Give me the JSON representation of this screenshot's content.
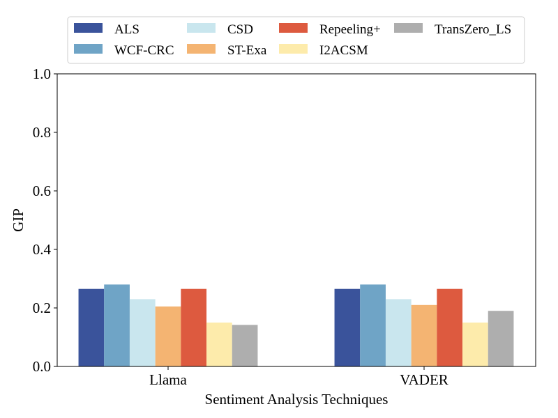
{
  "chart_data": {
    "type": "bar",
    "title": "",
    "xlabel": "Sentiment Analysis Techniques",
    "ylabel": "GIP",
    "ylim": [
      0,
      1.0
    ],
    "yticks": [
      "0.0",
      "0.2",
      "0.4",
      "0.6",
      "0.8",
      "1.0"
    ],
    "categories": [
      "Llama",
      "VADER"
    ],
    "legend_position": "top",
    "grid": false,
    "series": [
      {
        "name": "ALS",
        "color": "#3a539b",
        "values": [
          0.265,
          0.265
        ]
      },
      {
        "name": "WCF-CRC",
        "color": "#6fa4c6",
        "values": [
          0.28,
          0.28
        ]
      },
      {
        "name": "CSD",
        "color": "#c9e6ee",
        "values": [
          0.23,
          0.23
        ]
      },
      {
        "name": "ST-Exa",
        "color": "#f4b472",
        "values": [
          0.205,
          0.21
        ]
      },
      {
        "name": "Repeeling+",
        "color": "#dd5a3f",
        "values": [
          0.265,
          0.265
        ]
      },
      {
        "name": "I2ACSM",
        "color": "#fdebab",
        "values": [
          0.15,
          0.15
        ]
      },
      {
        "name": "TransZero_LS",
        "color": "#aeaeae",
        "values": [
          0.142,
          0.19
        ]
      }
    ]
  }
}
